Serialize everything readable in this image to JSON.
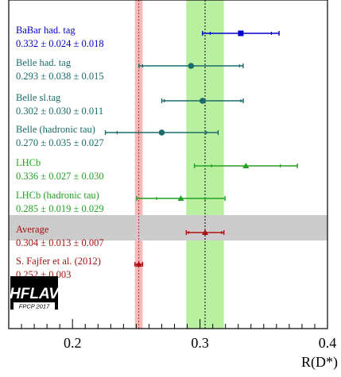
{
  "chart_data": {
    "type": "scatter",
    "title": "",
    "xlabel": "R(D*)",
    "ylabel": "",
    "xlim": [
      0.15,
      0.4
    ],
    "x_ticks": [
      0.2,
      0.3,
      0.4
    ],
    "x_tick_labels": [
      "0.2",
      "0.3",
      "0.4"
    ],
    "grid": false,
    "measurements": [
      {
        "label": "BaBar had. tag",
        "value_text": "0.332 ± 0.024 ± 0.018",
        "value": 0.332,
        "stat": 0.024,
        "syst": 0.018,
        "color": "#0000cc",
        "marker": "square"
      },
      {
        "label": "Belle had. tag",
        "value_text": "0.293 ± 0.038 ± 0.015",
        "value": 0.293,
        "stat": 0.038,
        "syst": 0.015,
        "color": "#1a6b6b",
        "marker": "circle"
      },
      {
        "label": "Belle sl.tag",
        "value_text": "0.302 ± 0.030 ± 0.011",
        "value": 0.302,
        "stat": 0.03,
        "syst": 0.011,
        "color": "#1a6b6b",
        "marker": "circle"
      },
      {
        "label": "Belle (hadronic tau)",
        "value_text": "0.270 ± 0.035 ± 0.027",
        "value": 0.27,
        "stat": 0.035,
        "syst": 0.027,
        "color": "#1a6b6b",
        "marker": "circle"
      },
      {
        "label": "LHCb",
        "value_text": "0.336 ± 0.027 ± 0.030",
        "value": 0.336,
        "stat": 0.027,
        "syst": 0.03,
        "color": "#22a022",
        "marker": "triangle"
      },
      {
        "label": "LHCb (hadronic tau)",
        "value_text": "0.285 ± 0.019 ± 0.029",
        "value": 0.285,
        "stat": 0.019,
        "syst": 0.029,
        "color": "#22a022",
        "marker": "triangle"
      }
    ],
    "average": {
      "label": "Average",
      "value_text": "0.304 ± 0.013 ± 0.007",
      "value": 0.304,
      "stat": 0.013,
      "syst": 0.007,
      "color": "#aa1111",
      "band_color": "#cccccc"
    },
    "prediction": {
      "label": "S. Fajfer et al. (2012)",
      "value_text": "0.252 ± 0.003",
      "value": 0.252,
      "error": 0.003,
      "color": "#aa1111",
      "band_color": "#f4b8b8"
    },
    "average_band_color": "#b8f0a0"
  },
  "logo": {
    "text": "HFLAV",
    "subtitle": "FPCP 2017"
  }
}
